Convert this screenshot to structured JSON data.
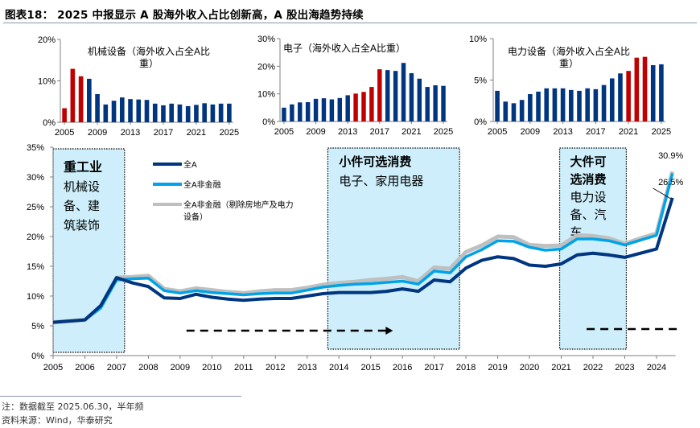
{
  "title": "图表18： 2025 中报显示 A 股海外收入占比创新高，A 股出海趋势持续",
  "notes": {
    "note": "注：数据截至 2025.06.30，半年频",
    "source": "资料来源：Wind，华泰研究"
  },
  "colors": {
    "blue_bar": "#003580",
    "red_bar": "#c00000",
    "dark_line": "#003580",
    "light_line": "#00a3e8",
    "gray_line": "#bfbfbf",
    "highlight_fill": "#cdeefa"
  },
  "chart_data": [
    {
      "type": "bar",
      "title": "机械设备（海外收入占全A比重）",
      "title_lines": [
        "机械设备（海外收入占全A比",
        "重）"
      ],
      "categories": [
        "2005",
        "2006",
        "2007",
        "2008",
        "2009",
        "2010",
        "2011",
        "2012",
        "2013",
        "2014",
        "2015",
        "2016",
        "2017",
        "2018",
        "2019",
        "2020",
        "2021",
        "2022",
        "2023",
        "2024",
        "2025"
      ],
      "values": [
        3.4,
        12.9,
        11.1,
        10.5,
        6.8,
        4.3,
        5.2,
        6.0,
        5.6,
        5.5,
        5.4,
        4.5,
        4.1,
        4.5,
        4.3,
        3.9,
        4.2,
        4.6,
        4.3,
        4.5,
        4.5
      ],
      "highlighted": [
        "2005",
        "2006",
        "2007"
      ],
      "xticks": [
        "2005",
        "2009",
        "2013",
        "2017",
        "2021",
        "2025"
      ],
      "yticks": [
        "0%",
        "10%",
        "20%"
      ],
      "ylim": [
        0,
        20
      ],
      "unit": "%"
    },
    {
      "type": "bar",
      "title": "电子（海外收入占全A比重）",
      "title_lines": [
        "电子（海外收入占全A比重）"
      ],
      "categories": [
        "2005",
        "2006",
        "2007",
        "2008",
        "2009",
        "2010",
        "2011",
        "2012",
        "2013",
        "2014",
        "2015",
        "2016",
        "2017",
        "2018",
        "2019",
        "2020",
        "2021",
        "2022",
        "2023",
        "2024",
        "2025"
      ],
      "values": [
        5.0,
        6.2,
        6.9,
        7.0,
        8.2,
        8.4,
        8.0,
        8.5,
        9.5,
        10.1,
        10.7,
        12.5,
        18.9,
        18.6,
        18.3,
        21.2,
        17.5,
        15.5,
        12.5,
        13.1,
        12.9
      ],
      "highlighted": [
        "2014",
        "2015",
        "2016",
        "2017"
      ],
      "xticks": [
        "2005",
        "2009",
        "2013",
        "2017",
        "2021",
        "2025"
      ],
      "yticks": [
        "0%",
        "10%",
        "20%",
        "30%"
      ],
      "ylim": [
        0,
        30
      ],
      "unit": "%"
    },
    {
      "type": "bar",
      "title": "电力设备（海外收入占全A比重）",
      "title_lines": [
        "电力设备（海外收入占全A比",
        "重）"
      ],
      "categories": [
        "2005",
        "2006",
        "2007",
        "2008",
        "2009",
        "2010",
        "2011",
        "2012",
        "2013",
        "2014",
        "2015",
        "2016",
        "2017",
        "2018",
        "2019",
        "2020",
        "2021",
        "2022",
        "2023",
        "2024",
        "2025"
      ],
      "values": [
        3.7,
        2.4,
        2.2,
        2.6,
        3.3,
        3.6,
        4.0,
        4.0,
        4.0,
        3.8,
        3.7,
        4.0,
        3.9,
        4.4,
        5.2,
        5.8,
        6.1,
        7.7,
        7.8,
        6.8,
        6.9
      ],
      "highlighted": [
        "2021",
        "2022",
        "2023"
      ],
      "xticks": [
        "2005",
        "2009",
        "2013",
        "2017",
        "2021",
        "2025"
      ],
      "yticks": [
        "0%",
        "5%",
        "10%"
      ],
      "ylim": [
        0,
        10
      ],
      "unit": "%"
    },
    {
      "type": "line",
      "title": "",
      "x": [
        2005,
        2005.5,
        2006,
        2006.5,
        2007,
        2007.5,
        2008,
        2008.5,
        2009,
        2009.5,
        2010,
        2010.5,
        2011,
        2011.5,
        2012,
        2012.5,
        2013,
        2013.5,
        2014,
        2014.5,
        2015,
        2015.5,
        2016,
        2016.5,
        2017,
        2017.5,
        2018,
        2018.5,
        2019,
        2019.5,
        2020,
        2020.5,
        2021,
        2021.5,
        2022,
        2022.5,
        2023,
        2023.5,
        2024,
        2024.5
      ],
      "series": [
        {
          "name": "全A",
          "color_key": "dark_line",
          "values": [
            5.6,
            5.8,
            6.0,
            8.4,
            13.1,
            12.2,
            11.6,
            9.7,
            9.6,
            10.3,
            9.8,
            9.5,
            9.3,
            9.5,
            9.6,
            9.6,
            10.0,
            10.4,
            10.6,
            10.6,
            10.6,
            10.8,
            11.2,
            10.8,
            12.7,
            12.4,
            14.7,
            16.0,
            16.6,
            16.3,
            15.2,
            15.0,
            15.4,
            16.9,
            17.2,
            16.9,
            16.5,
            17.2,
            17.9,
            26.5
          ]
        },
        {
          "name": "全A非金融",
          "color_key": "light_line",
          "values": [
            5.6,
            5.8,
            6.0,
            8.0,
            12.7,
            12.9,
            13.0,
            10.9,
            10.5,
            10.9,
            10.6,
            10.4,
            10.2,
            10.4,
            10.5,
            10.5,
            11.0,
            11.5,
            11.8,
            12.0,
            12.1,
            12.3,
            12.5,
            12.0,
            14.2,
            13.9,
            16.6,
            17.8,
            19.3,
            19.2,
            18.2,
            17.7,
            17.9,
            19.6,
            19.6,
            19.3,
            18.6,
            19.4,
            20.2,
            30.6
          ]
        },
        {
          "name": "全A非金融（剔除房地产及电力设备）",
          "color_key": "gray_line",
          "values": [
            5.6,
            5.8,
            6.0,
            8.2,
            13.1,
            13.2,
            13.4,
            11.2,
            10.8,
            11.3,
            11.0,
            10.7,
            10.5,
            10.8,
            11.0,
            11.0,
            11.4,
            11.9,
            12.2,
            12.4,
            12.7,
            12.9,
            13.2,
            12.5,
            14.8,
            14.6,
            17.4,
            18.5,
            20.0,
            19.9,
            18.6,
            18.4,
            18.5,
            20.2,
            20.1,
            19.7,
            18.8,
            19.7,
            20.5,
            30.9
          ]
        }
      ],
      "data_labels": [
        {
          "series": "全A非金融（剔除房地产及电力设备）",
          "x": 2024.5,
          "text": "30.9%"
        },
        {
          "series": "全A",
          "x": 2024.5,
          "text": "26.5%"
        }
      ],
      "xticks": [
        "2005",
        "2006",
        "2007",
        "2008",
        "2009",
        "2010",
        "2011",
        "2012",
        "2013",
        "2014",
        "2015",
        "2016",
        "2017",
        "2018",
        "2019",
        "2020",
        "2021",
        "2022",
        "2023",
        "2024"
      ],
      "yticks": [
        "0%",
        "5%",
        "10%",
        "15%",
        "20%",
        "25%",
        "30%",
        "35%"
      ],
      "ylim": [
        0,
        35
      ],
      "xlim": [
        2005,
        2024.55
      ],
      "legend": {
        "placement": "top-left",
        "entries": [
          "全A",
          "全A非金融",
          "全A非金融（剔除房地产及电力设备）"
        ],
        "entry_lines": [
          [
            "全A"
          ],
          [
            "全A非金融"
          ],
          [
            "全A非金融（剔除房地产及电力",
            "设备）"
          ]
        ]
      },
      "annotations": [
        {
          "type": "highlight-box",
          "x_range": [
            2005,
            2007.25
          ],
          "heading": "重工业",
          "body_lines": [
            "机械设",
            "备、建",
            "筑装饰"
          ]
        },
        {
          "type": "highlight-box",
          "x_range": [
            2013.65,
            2017.8
          ],
          "heading": "小件可选消费",
          "body_lines": [
            "电子、家用电器"
          ]
        },
        {
          "type": "highlight-box",
          "x_range": [
            2020.95,
            2023.05
          ],
          "heading_lines": [
            "大件可",
            "选消费"
          ],
          "body_lines": [
            "电力设",
            "备、汽",
            "车"
          ]
        },
        {
          "type": "dashed-arrow",
          "x_range": [
            2009.2,
            2015.7
          ],
          "y": 4.2,
          "arrow": true
        },
        {
          "type": "dashed-line",
          "x_range": [
            2021.8,
            2024.75
          ],
          "y": 4.5,
          "arrow": false
        }
      ]
    }
  ]
}
